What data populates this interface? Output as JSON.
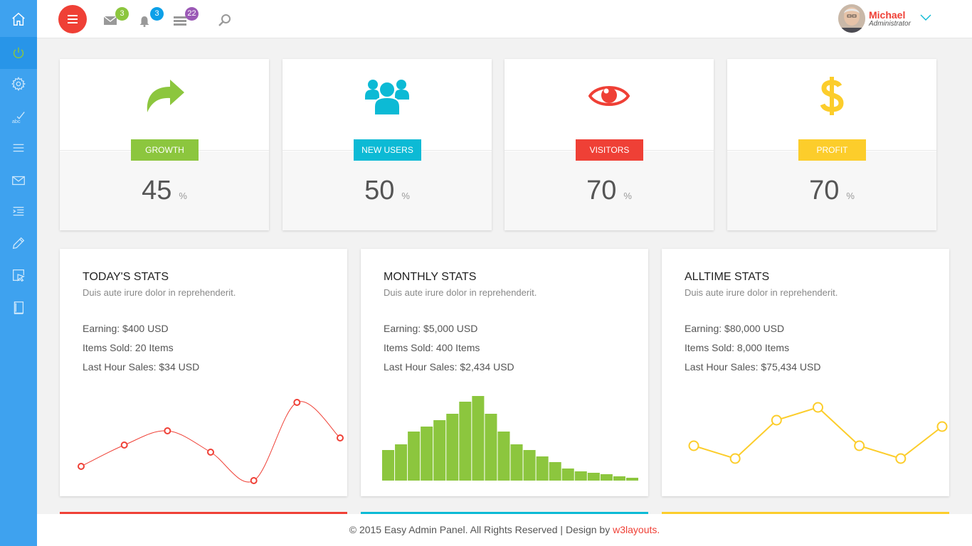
{
  "header": {
    "badges": {
      "messages": "3",
      "notifications": "3",
      "tasks": "22"
    },
    "user": {
      "name": "Michael",
      "role": "Administrator"
    }
  },
  "stat_cards": [
    {
      "label": "GROWTH",
      "value": "45",
      "unit": "%",
      "color": "#8cc63e"
    },
    {
      "label": "NEW USERS",
      "value": "50",
      "unit": "%",
      "color": "#0cbad5"
    },
    {
      "label": "VISITORS",
      "value": "70",
      "unit": "%",
      "color": "#ef4036"
    },
    {
      "label": "PROFIT",
      "value": "70",
      "unit": "%",
      "color": "#fccd2b"
    }
  ],
  "panels": [
    {
      "title": "TODAY'S STATS",
      "subtitle": "Duis aute irure dolor in reprehenderit.",
      "lines": [
        "Earning: $400 USD",
        "Items Sold: 20 Items",
        "Last Hour Sales: $34 USD"
      ]
    },
    {
      "title": "MONTHLY STATS",
      "subtitle": "Duis aute irure dolor in reprehenderit.",
      "lines": [
        "Earning: $5,000 USD",
        "Items Sold: 400 Items",
        "Last Hour Sales: $2,434 USD"
      ]
    },
    {
      "title": "ALLTIME STATS",
      "subtitle": "Duis aute irure dolor in reprehenderit.",
      "lines": [
        "Earning: $80,000 USD",
        "Items Sold: 8,000 Items",
        "Last Hour Sales: $75,434 USD"
      ]
    }
  ],
  "chart_data": [
    {
      "type": "line",
      "color": "#ef4036",
      "smooth": true,
      "values": [
        2,
        5,
        7,
        4,
        0,
        11,
        6
      ]
    },
    {
      "type": "bar",
      "color": "#8cc63e",
      "values": [
        43,
        51,
        69,
        76,
        85,
        94,
        111,
        119,
        94,
        69,
        51,
        43,
        34,
        26,
        17,
        13,
        11,
        9,
        6,
        4
      ]
    },
    {
      "type": "line",
      "color": "#fccd2b",
      "smooth": false,
      "values": [
        2,
        0,
        6,
        8,
        2,
        0,
        5
      ]
    }
  ],
  "footer": {
    "text": "© 2015 Easy Admin Panel. All Rights Reserved | Design by ",
    "link": "w3layouts."
  },
  "colors": {
    "sidebar": "#3ea2ef",
    "accent_red": "#ef4036"
  }
}
